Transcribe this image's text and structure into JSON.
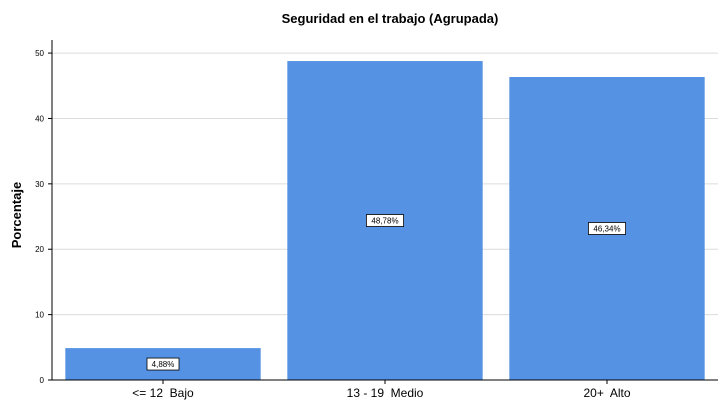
{
  "chart_data": {
    "type": "bar",
    "title": "Seguridad en el trabajo (Agrupada)",
    "xlabel": "",
    "ylabel": "Porcentaje",
    "categories": [
      "<= 12  Bajo",
      "13 - 19  Medio",
      "20+  Alto"
    ],
    "values": [
      4.88,
      48.78,
      46.34
    ],
    "data_labels": [
      "4,88%",
      "48,78%",
      "46,34%"
    ],
    "ylim": [
      0,
      52
    ],
    "yticks": [
      0,
      10,
      20,
      30,
      40,
      50
    ],
    "grid": true,
    "bar_color": "#5592e3"
  }
}
